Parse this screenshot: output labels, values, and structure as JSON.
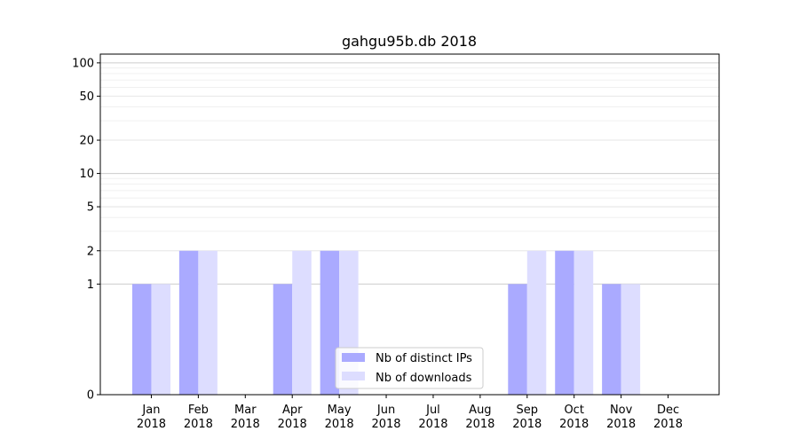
{
  "chart_data": {
    "type": "bar",
    "title": "gahgu95b.db 2018",
    "categories": [
      {
        "month": "Jan",
        "year": "2018"
      },
      {
        "month": "Feb",
        "year": "2018"
      },
      {
        "month": "Mar",
        "year": "2018"
      },
      {
        "month": "Apr",
        "year": "2018"
      },
      {
        "month": "May",
        "year": "2018"
      },
      {
        "month": "Jun",
        "year": "2018"
      },
      {
        "month": "Jul",
        "year": "2018"
      },
      {
        "month": "Aug",
        "year": "2018"
      },
      {
        "month": "Sep",
        "year": "2018"
      },
      {
        "month": "Oct",
        "year": "2018"
      },
      {
        "month": "Nov",
        "year": "2018"
      },
      {
        "month": "Dec",
        "year": "2018"
      }
    ],
    "series": [
      {
        "name": "Nb of distinct IPs",
        "color": "#aaaaff",
        "values": [
          1,
          2,
          0,
          1,
          2,
          0,
          0,
          0,
          1,
          2,
          1,
          0
        ]
      },
      {
        "name": "Nb of downloads",
        "color": "#ddddff",
        "values": [
          1,
          2,
          0,
          2,
          2,
          0,
          0,
          0,
          2,
          2,
          1,
          0
        ]
      }
    ],
    "yscale": "symlog",
    "ylim": [
      0,
      120
    ],
    "yticks": [
      0,
      1,
      2,
      5,
      10,
      20,
      50,
      100
    ],
    "ytick_labels": [
      "0",
      "1",
      "2",
      "5",
      "10",
      "20",
      "50",
      "100"
    ],
    "grid": true,
    "legend_position": "bottom-center"
  }
}
